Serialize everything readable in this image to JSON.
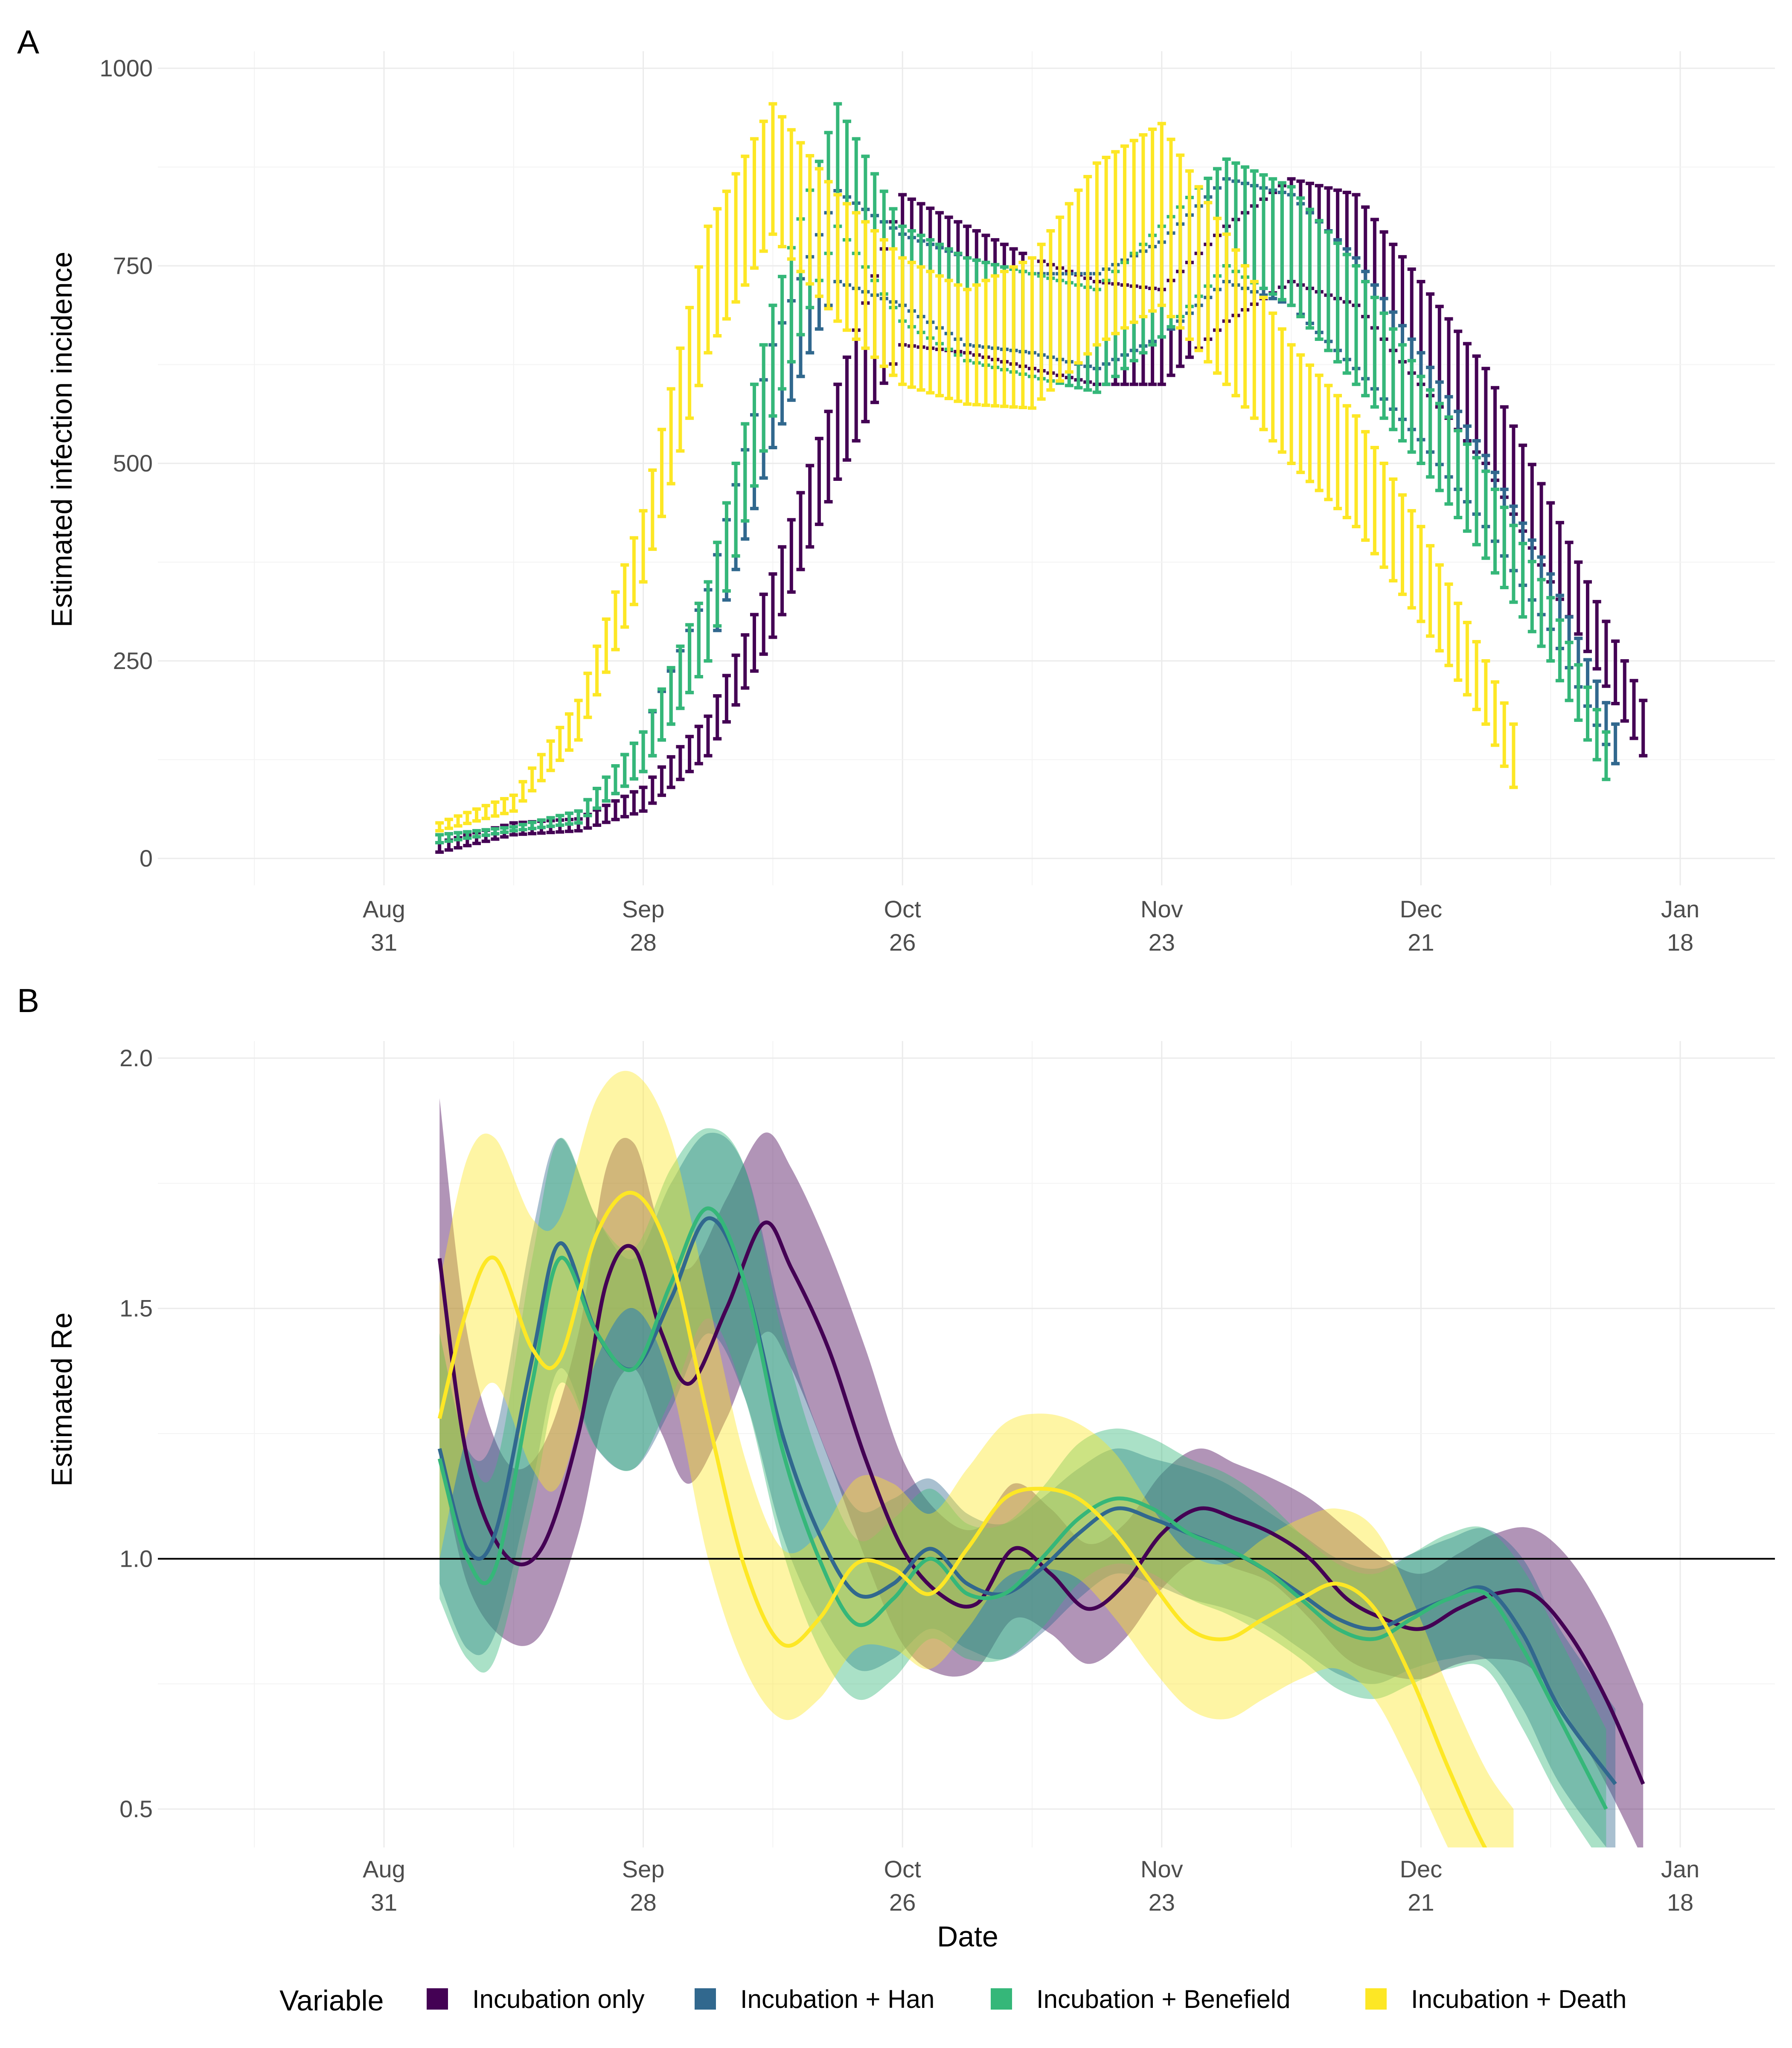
{
  "figure": {
    "panel_labels": [
      "A",
      "B"
    ],
    "x_axis_title": "Date",
    "x_ticks": [
      {
        "line1": "Aug",
        "line2": "31",
        "day": 0
      },
      {
        "line1": "Sep",
        "line2": "28",
        "day": 28
      },
      {
        "line1": "Oct",
        "line2": "26",
        "day": 56
      },
      {
        "line1": "Nov",
        "line2": "23",
        "day": 84
      },
      {
        "line1": "Dec",
        "line2": "21",
        "day": 112
      },
      {
        "line1": "Jan",
        "line2": "18",
        "day": 140
      }
    ],
    "legend_title": "Variable",
    "colors": {
      "Incubation only": "#440154",
      "Incubation + Han": "#31688E",
      "Incubation + Benefield": "#35B779",
      "Incubation + Death": "#FDE725"
    }
  },
  "chart_data": [
    {
      "type": "errorbar",
      "panel": "A",
      "title": "",
      "xlabel": "",
      "ylabel": "Estimated infection incidence",
      "xlim": [
        "2020-08-17",
        "2021-01-27"
      ],
      "ylim": [
        -30,
        1000
      ],
      "yticks": [
        0,
        250,
        500,
        750,
        1000
      ],
      "x_tick_labels": [
        "Aug 31",
        "Sep 28",
        "Oct 26",
        "Nov 23",
        "Dec 21",
        "Jan 18"
      ],
      "grid": true,
      "series": [
        {
          "name": "Incubation only",
          "start": "2020-09-06",
          "end": "2021-01-14",
          "knots_x": [
            "2020-09-06",
            "2020-09-14",
            "2020-09-21",
            "2020-09-28",
            "2020-10-05",
            "2020-10-12",
            "2020-10-19",
            "2020-10-26",
            "2020-11-02",
            "2020-11-09",
            "2020-11-16",
            "2020-11-23",
            "2020-11-30",
            "2020-12-07",
            "2020-12-14",
            "2020-12-21",
            "2020-12-28",
            "2021-01-04",
            "2021-01-14"
          ],
          "lower": [
            8,
            30,
            35,
            60,
            130,
            280,
            480,
            650,
            640,
            620,
            600,
            600,
            680,
            730,
            700,
            600,
            500,
            350,
            130
          ],
          "upper": [
            20,
            45,
            50,
            90,
            180,
            360,
            600,
            840,
            800,
            760,
            730,
            720,
            800,
            860,
            840,
            730,
            620,
            450,
            200
          ]
        },
        {
          "name": "Incubation + Han",
          "start": "2020-09-06",
          "end": "2021-01-11",
          "knots_x": [
            "2020-09-06",
            "2020-09-14",
            "2020-09-21",
            "2020-09-28",
            "2020-10-05",
            "2020-10-12",
            "2020-10-19",
            "2020-10-26",
            "2020-11-02",
            "2020-11-09",
            "2020-11-16",
            "2020-11-23",
            "2020-11-30",
            "2020-12-07",
            "2020-12-14",
            "2020-12-21",
            "2020-12-28",
            "2021-01-04",
            "2021-01-11"
          ],
          "lower": [
            20,
            35,
            45,
            110,
            250,
            520,
            730,
            700,
            650,
            640,
            620,
            660,
            730,
            700,
            620,
            530,
            420,
            290,
            120
          ],
          "upper": [
            30,
            40,
            60,
            160,
            340,
            650,
            845,
            790,
            760,
            740,
            740,
            780,
            860,
            840,
            760,
            640,
            510,
            360,
            170
          ]
        },
        {
          "name": "Incubation + Benefield",
          "start": "2020-09-06",
          "end": "2021-01-10",
          "knots_x": [
            "2020-09-06",
            "2020-09-14",
            "2020-09-21",
            "2020-09-28",
            "2020-10-05",
            "2020-10-12",
            "2020-10-19",
            "2020-10-26",
            "2020-11-02",
            "2020-11-09",
            "2020-11-16",
            "2020-11-23",
            "2020-11-30",
            "2020-12-07",
            "2020-12-14",
            "2020-12-21",
            "2020-12-28",
            "2021-01-04",
            "2021-01-10"
          ],
          "lower": [
            20,
            35,
            45,
            110,
            250,
            560,
            800,
            680,
            630,
            610,
            590,
            660,
            750,
            700,
            600,
            500,
            380,
            250,
            100
          ],
          "upper": [
            30,
            40,
            60,
            160,
            350,
            700,
            955,
            800,
            760,
            740,
            720,
            800,
            885,
            850,
            750,
            610,
            490,
            330,
            160
          ]
        },
        {
          "name": "Incubation + Death",
          "start": "2020-09-06",
          "end": "2020-12-31",
          "knots_x": [
            "2020-09-06",
            "2020-09-14",
            "2020-09-21",
            "2020-09-28",
            "2020-10-05",
            "2020-10-12",
            "2020-10-19",
            "2020-10-26",
            "2020-11-02",
            "2020-11-09",
            "2020-11-16",
            "2020-11-23",
            "2020-11-30",
            "2020-12-07",
            "2020-12-14",
            "2020-12-21",
            "2020-12-28",
            "2020-12-31"
          ],
          "lower": [
            35,
            60,
            150,
            350,
            640,
            790,
            680,
            600,
            575,
            570,
            650,
            700,
            600,
            500,
            420,
            300,
            170,
            90
          ],
          "upper": [
            45,
            80,
            200,
            440,
            800,
            955,
            840,
            760,
            720,
            760,
            880,
            930,
            790,
            650,
            560,
            420,
            250,
            170
          ]
        }
      ]
    },
    {
      "type": "area",
      "panel": "B",
      "title": "",
      "xlabel": "Date",
      "ylabel": "Estimated Re",
      "xlim": [
        "2020-08-17",
        "2021-01-27"
      ],
      "ylim": [
        0.43,
        2.05
      ],
      "yticks": [
        0.5,
        1.0,
        1.5,
        2.0
      ],
      "reference_line": 1.0,
      "x_tick_labels": [
        "Aug 31",
        "Sep 28",
        "Oct 26",
        "Nov 23",
        "Dec 21",
        "Jan 18"
      ],
      "grid": true,
      "series": [
        {
          "name": "Incubation only",
          "x": [
            "2020-09-06",
            "2020-09-09",
            "2020-09-13",
            "2020-09-17",
            "2020-09-21",
            "2020-09-24",
            "2020-09-27",
            "2020-09-30",
            "2020-10-03",
            "2020-10-07",
            "2020-10-11",
            "2020-10-14",
            "2020-10-18",
            "2020-10-22",
            "2020-10-26",
            "2020-10-30",
            "2020-11-03",
            "2020-11-07",
            "2020-11-11",
            "2020-11-15",
            "2020-11-19",
            "2020-11-23",
            "2020-11-27",
            "2020-12-01",
            "2020-12-05",
            "2020-12-09",
            "2020-12-13",
            "2020-12-17",
            "2020-12-21",
            "2020-12-25",
            "2020-12-29",
            "2021-01-02",
            "2021-01-06",
            "2021-01-10",
            "2021-01-14"
          ],
          "value": [
            1.6,
            1.2,
            1.01,
            1.02,
            1.25,
            1.55,
            1.62,
            1.45,
            1.35,
            1.5,
            1.67,
            1.58,
            1.42,
            1.2,
            1.02,
            0.93,
            0.91,
            1.02,
            0.97,
            0.9,
            0.95,
            1.05,
            1.1,
            1.08,
            1.05,
            1.0,
            0.92,
            0.88,
            0.86,
            0.9,
            0.93,
            0.93,
            0.85,
            0.72,
            0.55
          ],
          "lower": [
            1.2,
            0.95,
            0.84,
            0.85,
            1.05,
            1.3,
            1.38,
            1.25,
            1.15,
            1.28,
            1.45,
            1.38,
            1.2,
            1.0,
            0.83,
            0.77,
            0.78,
            0.88,
            0.85,
            0.79,
            0.84,
            0.94,
            1.0,
            0.98,
            0.95,
            0.88,
            0.8,
            0.77,
            0.76,
            0.79,
            0.8,
            0.78,
            0.68,
            0.55,
            0.4
          ],
          "upper": [
            1.92,
            1.45,
            1.2,
            1.22,
            1.45,
            1.78,
            1.83,
            1.65,
            1.58,
            1.72,
            1.85,
            1.78,
            1.62,
            1.42,
            1.2,
            1.09,
            1.06,
            1.15,
            1.1,
            1.03,
            1.07,
            1.17,
            1.22,
            1.19,
            1.16,
            1.12,
            1.06,
            1.0,
            0.97,
            1.01,
            1.05,
            1.06,
            1.0,
            0.88,
            0.71
          ]
        },
        {
          "name": "Incubation + Han",
          "x": [
            "2020-09-06",
            "2020-09-09",
            "2020-09-12",
            "2020-09-16",
            "2020-09-19",
            "2020-09-23",
            "2020-09-27",
            "2020-10-01",
            "2020-10-05",
            "2020-10-09",
            "2020-10-13",
            "2020-10-17",
            "2020-10-21",
            "2020-10-25",
            "2020-10-29",
            "2020-11-02",
            "2020-11-06",
            "2020-11-10",
            "2020-11-14",
            "2020-11-18",
            "2020-11-22",
            "2020-11-26",
            "2020-11-30",
            "2020-12-04",
            "2020-12-08",
            "2020-12-12",
            "2020-12-16",
            "2020-12-20",
            "2020-12-24",
            "2020-12-28",
            "2021-01-01",
            "2021-01-05",
            "2021-01-11"
          ],
          "value": [
            1.22,
            1.02,
            1.05,
            1.4,
            1.63,
            1.45,
            1.38,
            1.52,
            1.68,
            1.55,
            1.25,
            1.05,
            0.93,
            0.95,
            1.02,
            0.95,
            0.93,
            0.98,
            1.05,
            1.1,
            1.08,
            1.05,
            1.02,
            0.98,
            0.93,
            0.88,
            0.86,
            0.89,
            0.92,
            0.94,
            0.85,
            0.7,
            0.55
          ],
          "lower": [
            0.95,
            0.82,
            0.85,
            1.15,
            1.38,
            1.22,
            1.18,
            1.3,
            1.45,
            1.32,
            1.05,
            0.88,
            0.78,
            0.8,
            0.86,
            0.82,
            0.8,
            0.85,
            0.92,
            0.97,
            0.95,
            0.92,
            0.9,
            0.87,
            0.82,
            0.77,
            0.75,
            0.78,
            0.8,
            0.8,
            0.7,
            0.55,
            0.4
          ],
          "upper": [
            1.45,
            1.22,
            1.25,
            1.65,
            1.84,
            1.68,
            1.6,
            1.75,
            1.85,
            1.78,
            1.48,
            1.25,
            1.1,
            1.12,
            1.16,
            1.09,
            1.07,
            1.12,
            1.18,
            1.22,
            1.2,
            1.18,
            1.15,
            1.1,
            1.05,
            1.0,
            0.98,
            1.01,
            1.04,
            1.06,
            1.0,
            0.86,
            0.7
          ]
        },
        {
          "name": "Incubation + Benefield",
          "x": [
            "2020-09-06",
            "2020-09-09",
            "2020-09-12",
            "2020-09-16",
            "2020-09-19",
            "2020-09-23",
            "2020-09-27",
            "2020-10-01",
            "2020-10-05",
            "2020-10-09",
            "2020-10-13",
            "2020-10-17",
            "2020-10-21",
            "2020-10-25",
            "2020-10-29",
            "2020-11-02",
            "2020-11-06",
            "2020-11-10",
            "2020-11-14",
            "2020-11-18",
            "2020-11-22",
            "2020-11-26",
            "2020-11-30",
            "2020-12-04",
            "2020-12-08",
            "2020-12-12",
            "2020-12-16",
            "2020-12-20",
            "2020-12-24",
            "2020-12-28",
            "2021-01-01",
            "2021-01-05",
            "2021-01-10"
          ],
          "value": [
            1.2,
            1.0,
            0.98,
            1.35,
            1.6,
            1.45,
            1.38,
            1.55,
            1.7,
            1.55,
            1.22,
            1.0,
            0.87,
            0.92,
            1.0,
            0.93,
            0.93,
            1.0,
            1.08,
            1.12,
            1.1,
            1.05,
            1.02,
            0.98,
            0.92,
            0.86,
            0.84,
            0.88,
            0.92,
            0.93,
            0.82,
            0.68,
            0.5
          ],
          "lower": [
            0.92,
            0.8,
            0.8,
            1.1,
            1.35,
            1.22,
            1.18,
            1.32,
            1.48,
            1.32,
            1.02,
            0.82,
            0.72,
            0.76,
            0.84,
            0.8,
            0.8,
            0.86,
            0.95,
            0.99,
            0.97,
            0.92,
            0.89,
            0.85,
            0.8,
            0.74,
            0.72,
            0.75,
            0.78,
            0.78,
            0.66,
            0.52,
            0.38
          ],
          "upper": [
            1.45,
            1.22,
            1.18,
            1.6,
            1.84,
            1.68,
            1.62,
            1.78,
            1.86,
            1.78,
            1.45,
            1.2,
            1.04,
            1.08,
            1.14,
            1.07,
            1.07,
            1.14,
            1.23,
            1.26,
            1.24,
            1.2,
            1.17,
            1.12,
            1.05,
            0.99,
            0.97,
            1.01,
            1.05,
            1.06,
            0.98,
            0.84,
            0.66
          ]
        },
        {
          "name": "Incubation + Death",
          "x": [
            "2020-09-06",
            "2020-09-09",
            "2020-09-12",
            "2020-09-16",
            "2020-09-19",
            "2020-09-23",
            "2020-09-27",
            "2020-10-01",
            "2020-10-05",
            "2020-10-09",
            "2020-10-13",
            "2020-10-17",
            "2020-10-21",
            "2020-10-25",
            "2020-10-29",
            "2020-11-02",
            "2020-11-06",
            "2020-11-10",
            "2020-11-14",
            "2020-11-18",
            "2020-11-22",
            "2020-11-26",
            "2020-11-30",
            "2020-12-04",
            "2020-12-08",
            "2020-12-12",
            "2020-12-16",
            "2020-12-20",
            "2020-12-24",
            "2020-12-28",
            "2020-12-31"
          ],
          "value": [
            1.28,
            1.5,
            1.6,
            1.42,
            1.4,
            1.65,
            1.73,
            1.6,
            1.28,
            0.98,
            0.83,
            0.88,
            0.99,
            0.98,
            0.93,
            1.02,
            1.12,
            1.14,
            1.12,
            1.05,
            0.95,
            0.86,
            0.84,
            0.88,
            0.92,
            0.95,
            0.9,
            0.76,
            0.58,
            0.42,
            0.35
          ],
          "lower": [
            1.0,
            1.25,
            1.35,
            1.18,
            1.15,
            1.4,
            1.5,
            1.35,
            1.0,
            0.78,
            0.68,
            0.72,
            0.82,
            0.82,
            0.78,
            0.86,
            0.96,
            0.98,
            0.96,
            0.88,
            0.78,
            0.7,
            0.68,
            0.72,
            0.76,
            0.78,
            0.72,
            0.58,
            0.42,
            0.28,
            0.22
          ],
          "upper": [
            1.55,
            1.8,
            1.84,
            1.68,
            1.68,
            1.92,
            1.97,
            1.84,
            1.52,
            1.2,
            1.02,
            1.05,
            1.16,
            1.15,
            1.09,
            1.18,
            1.27,
            1.29,
            1.27,
            1.21,
            1.1,
            1.01,
            0.99,
            1.04,
            1.08,
            1.1,
            1.06,
            0.92,
            0.74,
            0.58,
            0.5
          ]
        }
      ]
    }
  ]
}
